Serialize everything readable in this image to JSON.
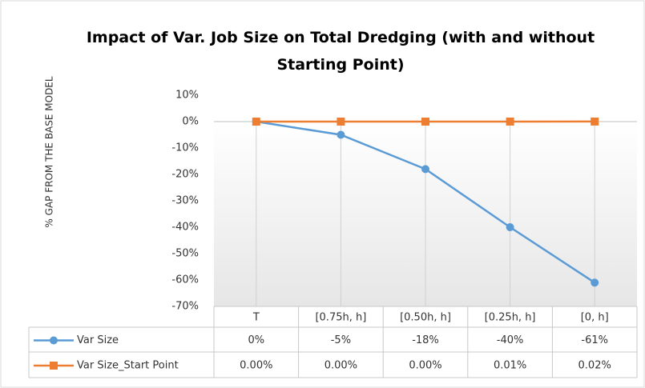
{
  "chart_data": {
    "type": "line",
    "title": "Impact of Var. Job Size on Total Dredging (with and without Starting Point)",
    "y_label": "% GAP FROM THE BASE MODEL",
    "categories": [
      "T",
      "[0.75h, h]",
      "[0.50h, h]",
      "[0.25h, h]",
      "[0, h]"
    ],
    "series": [
      {
        "name": "Var Size",
        "color": "#5b9bd5",
        "marker": "circle",
        "values": [
          0,
          -5,
          -18,
          -40,
          -61
        ],
        "value_labels": [
          "0%",
          "-5%",
          "-18%",
          "-40%",
          "-61%"
        ]
      },
      {
        "name": "Var Size_Start Point",
        "color": "#ed7d31",
        "marker": "square",
        "values": [
          0,
          0,
          0,
          0.01,
          0.02
        ],
        "value_labels": [
          "0.00%",
          "0.00%",
          "0.00%",
          "0.01%",
          "0.02%"
        ]
      }
    ],
    "ylim": [
      -70,
      10
    ],
    "yticks": [
      {
        "value": 10,
        "label": "10%"
      },
      {
        "value": 0,
        "label": "0%"
      },
      {
        "value": -10,
        "label": "-10%"
      },
      {
        "value": -20,
        "label": "-20%"
      },
      {
        "value": -30,
        "label": "-30%"
      },
      {
        "value": -40,
        "label": "-40%"
      },
      {
        "value": -50,
        "label": "-50%"
      },
      {
        "value": -60,
        "label": "-60%"
      },
      {
        "value": -70,
        "label": "-70%"
      }
    ],
    "data_table": true
  }
}
